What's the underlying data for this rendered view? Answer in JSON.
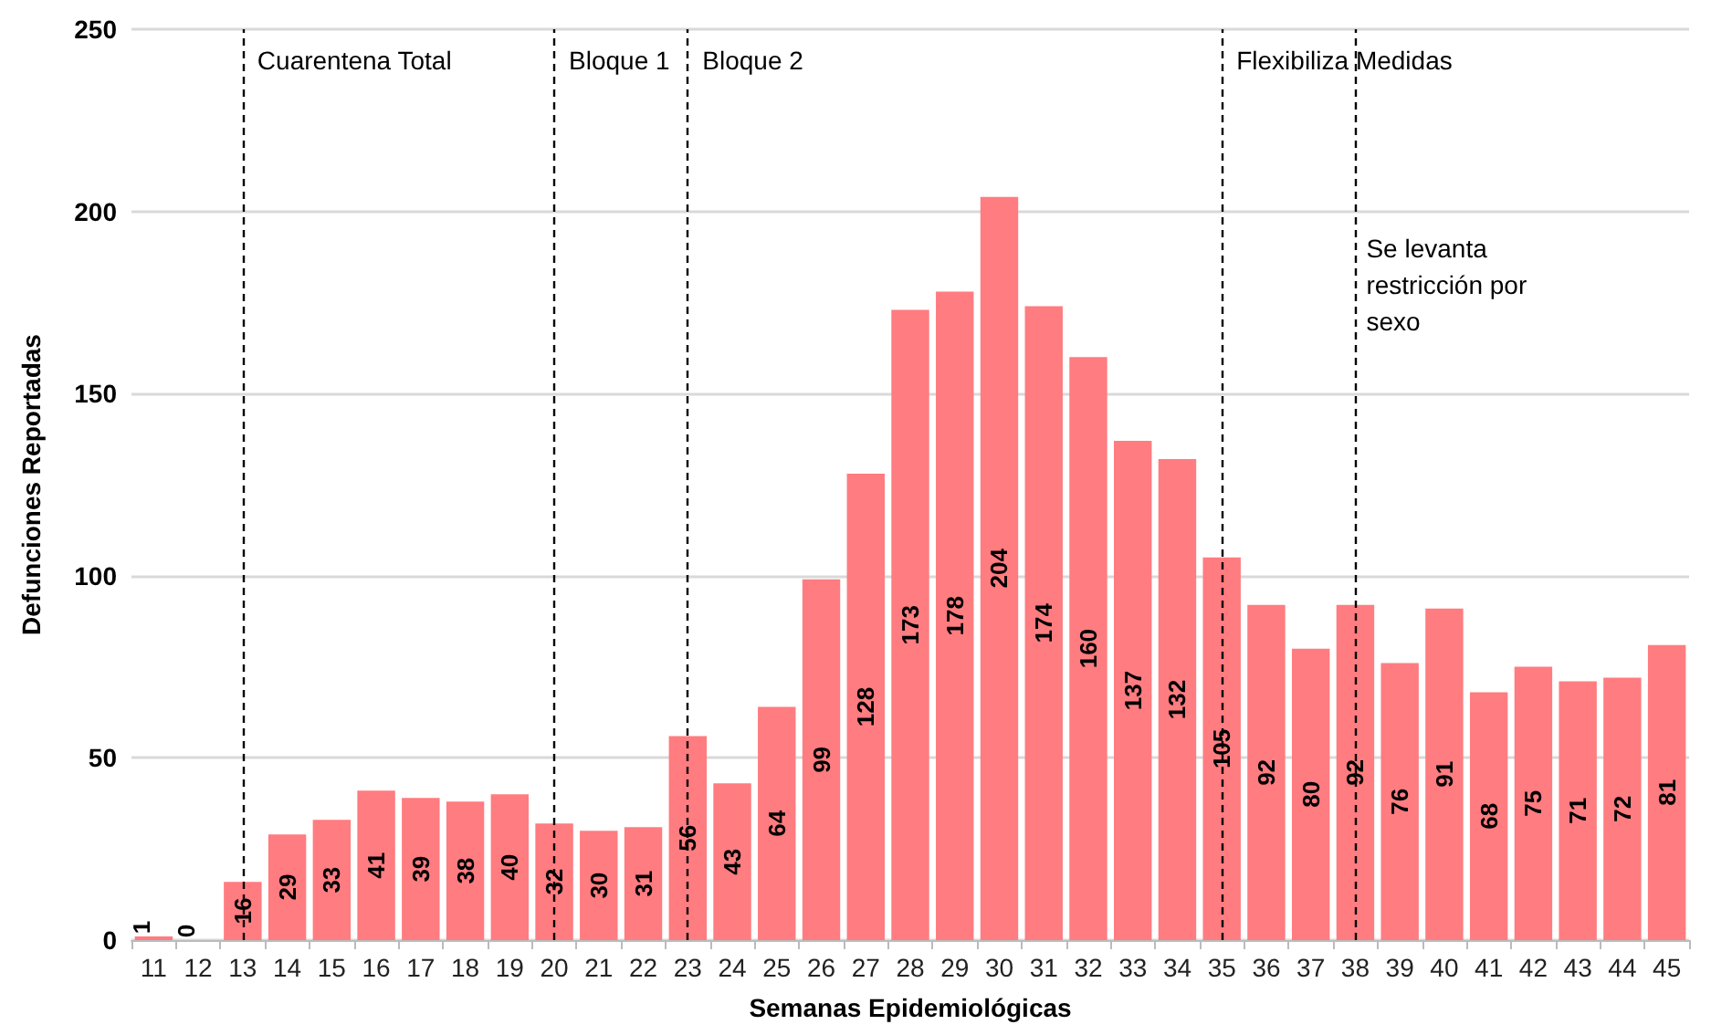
{
  "chart_data": {
    "type": "bar",
    "xlabel": "Semanas Epidemiológicas",
    "ylabel": "Defunciones Reportadas",
    "categories": [
      "11",
      "12",
      "13",
      "14",
      "15",
      "16",
      "17",
      "18",
      "19",
      "20",
      "21",
      "22",
      "23",
      "24",
      "25",
      "26",
      "27",
      "28",
      "29",
      "30",
      "31",
      "32",
      "33",
      "34",
      "35",
      "36",
      "37",
      "38",
      "39",
      "40",
      "41",
      "42",
      "43",
      "44",
      "45"
    ],
    "values": [
      1,
      0,
      16,
      29,
      33,
      41,
      39,
      38,
      40,
      32,
      30,
      31,
      56,
      43,
      64,
      99,
      128,
      173,
      178,
      204,
      174,
      160,
      137,
      132,
      105,
      92,
      80,
      92,
      76,
      91,
      68,
      75,
      71,
      72,
      81
    ],
    "color": "#ff7c80",
    "ylim": [
      0,
      250
    ],
    "yticks": [
      0,
      50,
      100,
      150,
      200,
      250
    ],
    "grid": "y",
    "data_labels": true,
    "ref_lines": [
      {
        "axis": "x",
        "value": "13",
        "label": "Cuarentena Total",
        "line_style": "dashed",
        "color": "#000000"
      },
      {
        "axis": "x",
        "value": "20",
        "label": "Bloque 1",
        "line_style": "dashed",
        "color": "#000000"
      },
      {
        "axis": "x",
        "value": "23",
        "label": "Bloque 2",
        "line_style": "dashed",
        "color": "#000000"
      },
      {
        "axis": "x",
        "value": "35",
        "label": "Flexibiliza Medidas",
        "line_style": "dashed",
        "color": "#000000"
      },
      {
        "axis": "x",
        "value": "38",
        "label": "Se levanta restricción por sexo",
        "line_style": "dashed",
        "color": "#000000"
      }
    ]
  }
}
